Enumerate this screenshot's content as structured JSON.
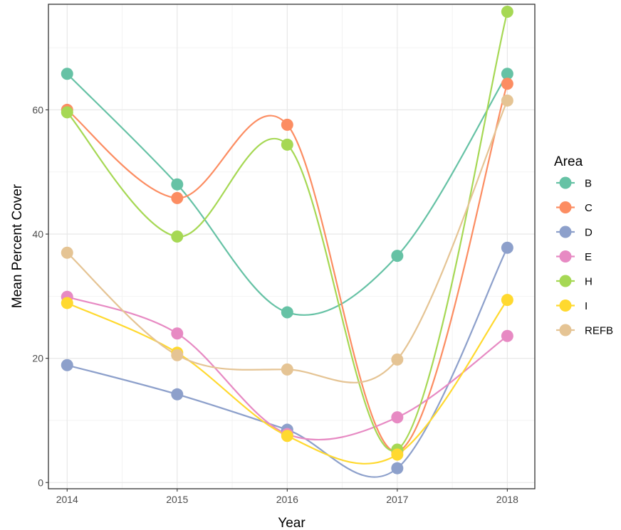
{
  "chart_data": {
    "type": "line",
    "xlabel": "Year",
    "ylabel": "Mean Percent Cover",
    "x": [
      2014,
      2015,
      2016,
      2017,
      2018
    ],
    "xlim": [
      2013.83,
      2018.25
    ],
    "ylim": [
      -1,
      77
    ],
    "x_ticks": [
      "2014",
      "2015",
      "2016",
      "2017",
      "2018"
    ],
    "y_ticks": [
      "0",
      "20",
      "40",
      "60"
    ],
    "y_tick_values": [
      0,
      20,
      40,
      60
    ],
    "grid": true,
    "legend": {
      "title": "Area",
      "position": "right"
    },
    "series": [
      {
        "name": "B",
        "color": "#66C2A5",
        "values": [
          65.8,
          48.0,
          27.4,
          36.5,
          65.8
        ]
      },
      {
        "name": "C",
        "color": "#FC8D62",
        "values": [
          60.0,
          45.8,
          57.6,
          5.0,
          64.2
        ]
      },
      {
        "name": "D",
        "color": "#8DA0CB",
        "values": [
          18.9,
          14.2,
          8.5,
          2.3,
          37.8
        ]
      },
      {
        "name": "E",
        "color": "#E78AC3",
        "values": [
          29.9,
          24.0,
          7.8,
          10.5,
          23.6
        ]
      },
      {
        "name": "H",
        "color": "#A6D854",
        "values": [
          59.6,
          39.6,
          54.4,
          5.3,
          75.8
        ]
      },
      {
        "name": "I",
        "color": "#FFD92F",
        "values": [
          28.9,
          20.9,
          7.5,
          4.5,
          29.4
        ]
      },
      {
        "name": "REFB",
        "color": "#E5C494",
        "values": [
          37.0,
          20.5,
          18.2,
          19.8,
          61.5
        ]
      }
    ]
  }
}
